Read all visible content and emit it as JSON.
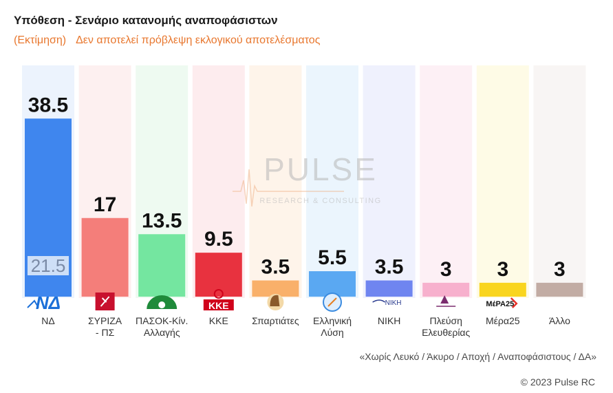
{
  "header": {
    "title": "Υπόθεση - Σενάριο κατανομής αναποφάσιστων",
    "estimate_label": "(Εκτίμηση)",
    "disclaimer": "Δεν αποτελεί πρόβλεψη εκλογικού αποτελέσματος"
  },
  "watermark": {
    "brand": "PULSE",
    "tagline": "RESEARCH & CONSULTING"
  },
  "chart_data": {
    "type": "bar",
    "title": "Υπόθεση - Σενάριο κατανομής αναποφάσιστων",
    "subtitle": "(Εκτίμηση) Δεν αποτελεί πρόβλεψη εκλογικού αποτελέσματος",
    "xlabel": "",
    "ylabel": "",
    "ylim": [
      0,
      50
    ],
    "grid": false,
    "categories": [
      "ΝΔ",
      "ΣΥΡΙΖΑ - ΠΣ",
      "ΠΑΣΟΚ-Κίν. Αλλαγής",
      "ΚΚΕ",
      "Σπαρτιάτες",
      "Ελληνική Λύση",
      "ΝΙΚΗ",
      "Πλεύση Ελευθερίας",
      "Μέρα25",
      "Άλλο"
    ],
    "tick_labels": [
      [
        "ΝΔ"
      ],
      [
        "ΣΥΡΙΖΑ",
        "- ΠΣ"
      ],
      [
        "ΠΑΣΟΚ-Κίν.",
        "Αλλαγής"
      ],
      [
        "ΚΚΕ"
      ],
      [
        "Σπαρτιάτες"
      ],
      [
        "Ελληνική",
        "Λύση"
      ],
      [
        "ΝΙΚΗ"
      ],
      [
        "Πλεύση",
        "Ελευθερίας"
      ],
      [
        "Μέρα25"
      ],
      [
        "Άλλο"
      ]
    ],
    "values": [
      38.5,
      17,
      13.5,
      9.5,
      3.5,
      5.5,
      3.5,
      3,
      3,
      3
    ],
    "value_labels": [
      "38.5",
      "17",
      "13.5",
      "9.5",
      "3.5",
      "5.5",
      "3.5",
      "3",
      "3",
      "3"
    ],
    "annotations": [
      {
        "category": "ΝΔ",
        "text": "21.5"
      }
    ],
    "colors": {
      "bars": [
        "#3f86ee",
        "#f47e7a",
        "#74e6a0",
        "#e8323f",
        "#f9b06a",
        "#5aa8f2",
        "#6f85f0",
        "#f7b0cd",
        "#f9d51e",
        "#c2aca4"
      ],
      "backgrounds": [
        "#ecf3fd",
        "#fdf0f0",
        "#eefaf1",
        "#fdecee",
        "#fef4ea",
        "#ebf5fd",
        "#eff1fd",
        "#fdf0f5",
        "#fefbe6",
        "#f8f5f4"
      ]
    },
    "logos": [
      "nd-logo",
      "syriza-logo",
      "pasok-logo",
      "kke-logo",
      "spartiates-logo",
      "elliniki-lysi-logo",
      "niki-logo",
      "plefsi-logo",
      "mera25-logo",
      "none"
    ],
    "logo_texts": [
      "ΝΔ",
      "",
      "",
      "ΚΚΕ",
      "",
      "",
      "ΝΙΚΗ",
      "",
      "ΜέΡΑ25",
      ""
    ]
  },
  "footer": {
    "note": "«Χωρίς Λευκό / Άκυρο / Αποχή / Αναποφάσιστους / ΔΑ»",
    "copyright": "© 2023 Pulse RC"
  }
}
